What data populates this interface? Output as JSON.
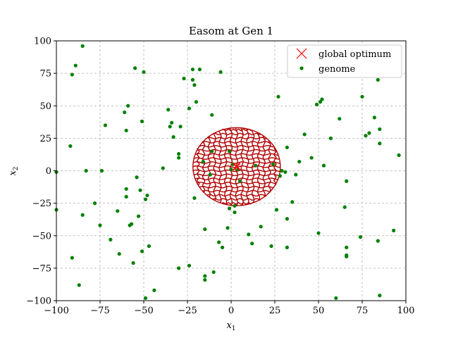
{
  "chart_data": {
    "type": "scatter",
    "title": "Easom at Gen 1",
    "xlabel": "x1",
    "ylabel": "x2",
    "xlim": [
      -100,
      100
    ],
    "ylim": [
      -100,
      100
    ],
    "xticks": [
      -100,
      -75,
      -50,
      -25,
      0,
      25,
      50,
      75,
      100
    ],
    "yticks": [
      -100,
      -75,
      -50,
      -25,
      0,
      25,
      50,
      75,
      100
    ],
    "grid": true,
    "legend_position": "upper-right",
    "colors": {
      "optimum": "#ff0000",
      "genome": "#008000",
      "contour": "#b00000",
      "grid": "#b0b0b0"
    },
    "contour": {
      "center": [
        3.14,
        3.14
      ],
      "x_halfwidth": 25,
      "y_halfwidth": 30
    },
    "series": [
      {
        "name": "global optimum",
        "marker": "x",
        "points": [
          [
            3.14,
            3.14
          ]
        ]
      },
      {
        "name": "genome",
        "marker": "dot",
        "points": [
          [
            -85,
            96
          ],
          [
            -89,
            81
          ],
          [
            -91,
            74
          ],
          [
            -92,
            19
          ],
          [
            -100,
            -1
          ],
          [
            -100,
            -30
          ],
          [
            -91,
            -67
          ],
          [
            -87,
            -88
          ],
          [
            -85,
            -34
          ],
          [
            -83,
            0
          ],
          [
            -78,
            -25
          ],
          [
            -75,
            -42
          ],
          [
            -74,
            0
          ],
          [
            -72,
            35
          ],
          [
            -69,
            -53
          ],
          [
            -65,
            -31
          ],
          [
            -64,
            -64
          ],
          [
            -61,
            45
          ],
          [
            -60,
            31
          ],
          [
            -60,
            -14
          ],
          [
            -60,
            -20
          ],
          [
            -59,
            50
          ],
          [
            -58,
            -42
          ],
          [
            -57,
            -41
          ],
          [
            -56,
            -71
          ],
          [
            -55,
            79
          ],
          [
            -54,
            -5
          ],
          [
            -53,
            -35
          ],
          [
            -52,
            -15
          ],
          [
            -51,
            38
          ],
          [
            -51,
            -62
          ],
          [
            -50,
            76
          ],
          [
            -49,
            -22
          ],
          [
            -49,
            -98
          ],
          [
            -48,
            -19
          ],
          [
            -47,
            -58
          ],
          [
            -44,
            -92
          ],
          [
            -39,
            2
          ],
          [
            -36,
            47
          ],
          [
            -35,
            34
          ],
          [
            -34,
            37
          ],
          [
            -33,
            26
          ],
          [
            -30,
            -75
          ],
          [
            -30,
            10
          ],
          [
            -30,
            13
          ],
          [
            -29,
            34
          ],
          [
            -27,
            71
          ],
          [
            -24,
            -73
          ],
          [
            -24,
            48
          ],
          [
            -22,
            78
          ],
          [
            -22,
            70
          ],
          [
            -21,
            -21
          ],
          [
            -21,
            66
          ],
          [
            -20,
            53
          ],
          [
            -18,
            78
          ],
          [
            -16,
            7
          ],
          [
            -15,
            -45
          ],
          [
            -15,
            -81
          ],
          [
            -15,
            -84
          ],
          [
            -12,
            -3
          ],
          [
            -11,
            43
          ],
          [
            -11,
            15
          ],
          [
            -10,
            -78
          ],
          [
            -7,
            -55
          ],
          [
            -6,
            76
          ],
          [
            -5,
            -59
          ],
          [
            -2,
            -44
          ],
          [
            -1,
            15
          ],
          [
            -1,
            -29
          ],
          [
            0,
            1
          ],
          [
            1,
            5
          ],
          [
            2,
            -27
          ],
          [
            2,
            -32
          ],
          [
            4,
            1
          ],
          [
            5,
            -8
          ],
          [
            10,
            -49
          ],
          [
            12,
            -56
          ],
          [
            14,
            4
          ],
          [
            17,
            -43
          ],
          [
            23,
            -58
          ],
          [
            24,
            5
          ],
          [
            26,
            -30
          ],
          [
            27,
            57
          ],
          [
            28,
            -4
          ],
          [
            29,
            0
          ],
          [
            31,
            -1
          ],
          [
            32,
            -59
          ],
          [
            32,
            -37
          ],
          [
            32,
            18
          ],
          [
            35,
            -24
          ],
          [
            37,
            -3
          ],
          [
            39,
            7
          ],
          [
            42,
            28
          ],
          [
            46,
            10
          ],
          [
            49,
            51
          ],
          [
            50,
            -48
          ],
          [
            51,
            53
          ],
          [
            52,
            55
          ],
          [
            53,
            4
          ],
          [
            57,
            25
          ],
          [
            60,
            -98
          ],
          [
            62,
            40
          ],
          [
            65,
            -28
          ],
          [
            66,
            -8
          ],
          [
            66,
            -59
          ],
          [
            66,
            -65
          ],
          [
            66,
            -66
          ],
          [
            74,
            -51
          ],
          [
            75,
            57
          ],
          [
            77,
            27
          ],
          [
            79,
            29
          ],
          [
            82,
            41
          ],
          [
            84,
            70
          ],
          [
            84,
            -54
          ],
          [
            85,
            -96
          ],
          [
            85,
            21
          ],
          [
            85,
            32
          ],
          [
            93,
            -46
          ],
          [
            96,
            12
          ]
        ]
      }
    ]
  }
}
